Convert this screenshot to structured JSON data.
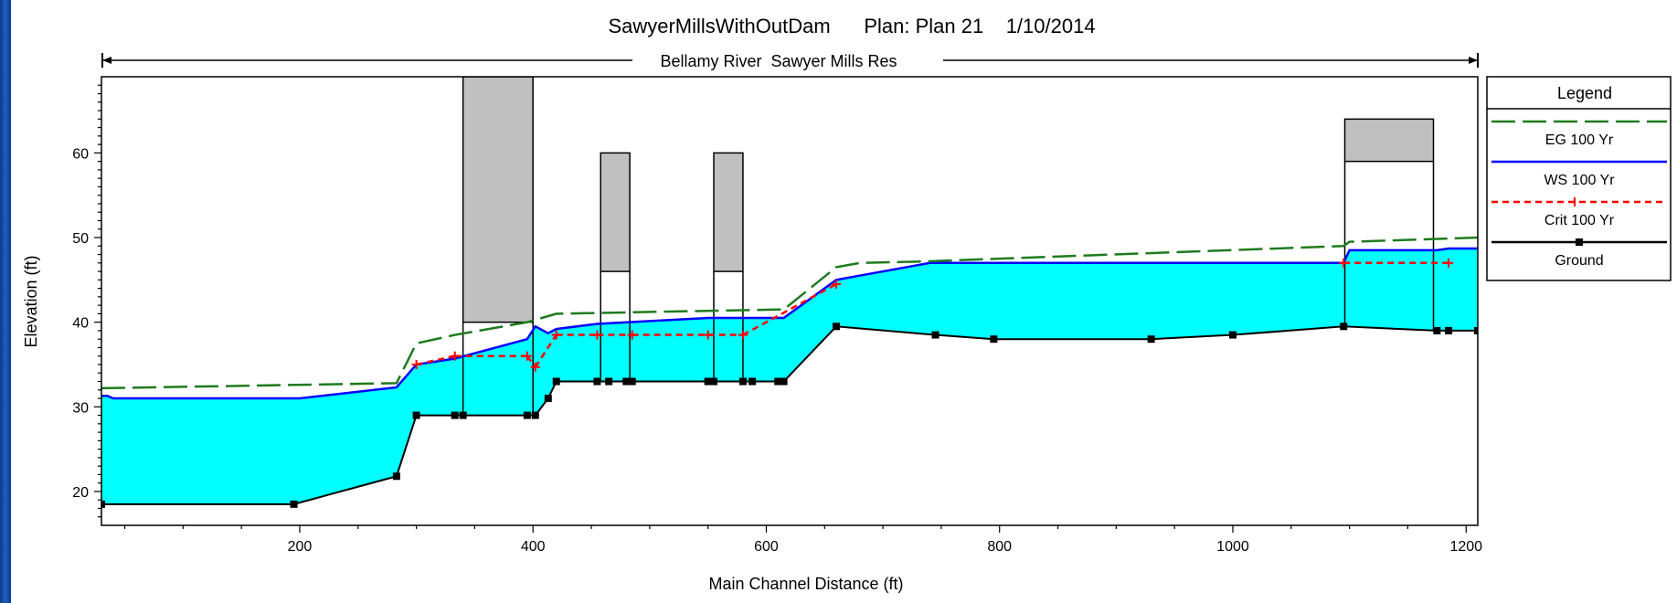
{
  "chart_data": {
    "type": "line",
    "title": "SawyerMillsWithOutDam      Plan: Plan 21    1/10/2014",
    "reach_label": "Bellamy River  Sawyer Mills Res",
    "xlabel": "Main Channel Distance (ft)",
    "ylabel": "Elevation (ft)",
    "xlim": [
      30,
      1210
    ],
    "ylim": [
      16,
      69
    ],
    "xticks": [
      200,
      400,
      600,
      800,
      1000,
      1200
    ],
    "yticks": [
      20,
      30,
      40,
      50,
      60
    ],
    "legend": {
      "title": "Legend",
      "placement": "right",
      "entries": [
        {
          "name": "EG 100 Yr",
          "color": "#1e7b1e",
          "style": "dashed"
        },
        {
          "name": "WS 100 Yr",
          "color": "#0000ff",
          "style": "solid"
        },
        {
          "name": "Crit 100 Yr",
          "color": "#ff0000",
          "style": "dotted"
        },
        {
          "name": "Ground",
          "color": "#000000",
          "style": "solid-marker"
        }
      ]
    },
    "series": [
      {
        "name": "Ground",
        "x": [
          30,
          195,
          283,
          300,
          333,
          340,
          395,
          402,
          413,
          420,
          455,
          465,
          480,
          485,
          550,
          555,
          580,
          588,
          610,
          615,
          660,
          745,
          795,
          930,
          1000,
          1095,
          1175,
          1185,
          1210
        ],
        "y": [
          18.5,
          18.5,
          21.8,
          29,
          29,
          29,
          29,
          29,
          31,
          33,
          33,
          33,
          33,
          33,
          33,
          33,
          33,
          33,
          33,
          33,
          39.5,
          38.5,
          38,
          38,
          38.5,
          39.5,
          39,
          39,
          39
        ]
      },
      {
        "name": "WS 100 Yr",
        "x": [
          30,
          35,
          40,
          200,
          283,
          300,
          333,
          395,
          402,
          413,
          420,
          455,
          550,
          588,
          610,
          615,
          660,
          680,
          740,
          1095,
          1100,
          1175,
          1185,
          1195,
          1210
        ],
        "y": [
          31.3,
          31.3,
          31,
          31,
          32.3,
          35,
          35.7,
          38,
          39.5,
          38.7,
          39.2,
          39.8,
          40.5,
          40.5,
          40.5,
          40.5,
          45,
          45.5,
          47,
          47,
          48.5,
          48.5,
          48.7,
          48.7,
          48.7
        ]
      },
      {
        "name": "EG 100 Yr",
        "x": [
          30,
          283,
          300,
          333,
          395,
          420,
          610,
          615,
          660,
          680,
          740,
          1095,
          1100,
          1210
        ],
        "y": [
          32.2,
          32.8,
          37.5,
          38.5,
          40,
          41,
          41.5,
          41.5,
          46.5,
          47,
          47.2,
          49,
          49.5,
          50
        ]
      },
      {
        "name": "Crit 100 Yr",
        "x": [
          300,
          333,
          395,
          402,
          420,
          455,
          485,
          550,
          580,
          660,
          1095,
          1185
        ],
        "y": [
          35,
          36,
          36,
          34.7,
          38.5,
          38.5,
          38.5,
          38.5,
          38.5,
          44.5,
          47,
          47
        ]
      }
    ],
    "structures": [
      {
        "x1": 340,
        "x2": 400,
        "low": 40,
        "high": 69
      },
      {
        "x1": 458,
        "x2": 483,
        "low": 46,
        "high": 60
      },
      {
        "x1": 555,
        "x2": 580,
        "low": 46,
        "high": 60
      },
      {
        "x1": 1096,
        "x2": 1172,
        "low": 59,
        "high": 64
      }
    ]
  }
}
